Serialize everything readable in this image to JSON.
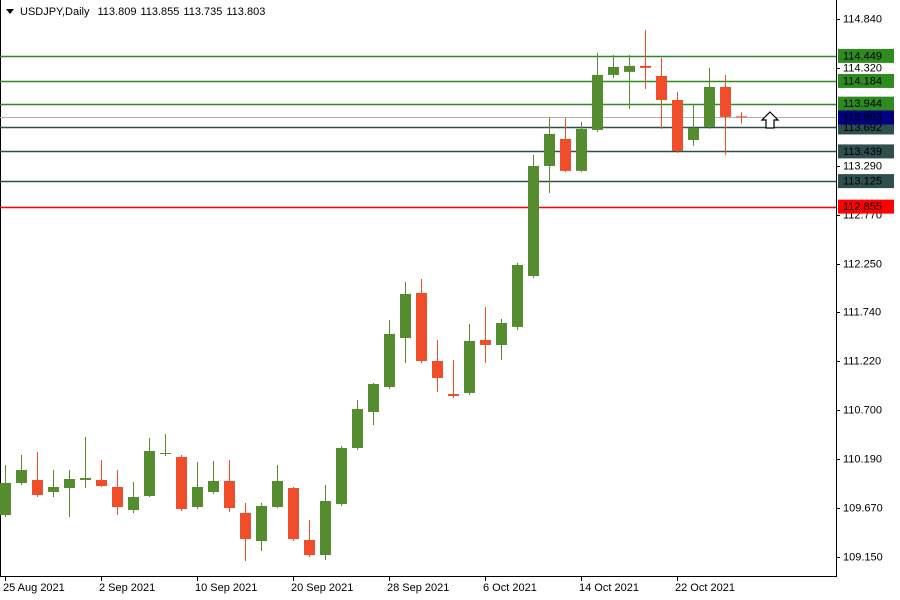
{
  "chart_data": {
    "type": "candlestick",
    "title": "USDJPY,Daily",
    "categories": [
      "25 Aug 2021",
      null,
      null,
      null,
      null,
      null,
      "2 Sep 2021",
      null,
      null,
      null,
      null,
      null,
      "10 Sep 2021",
      null,
      null,
      null,
      null,
      null,
      "20 Sep 2021",
      null,
      null,
      null,
      null,
      null,
      "28 Sep 2021",
      null,
      null,
      null,
      null,
      null,
      "6 Oct 2021",
      null,
      null,
      null,
      null,
      null,
      "14 Oct 2021",
      null,
      null,
      null,
      null,
      null,
      "22 Oct 2021",
      null,
      null,
      null,
      null
    ],
    "open": [
      109.594,
      109.933,
      109.965,
      109.838,
      109.88,
      109.965,
      109.965,
      109.891,
      109.647,
      109.795,
      110.24,
      110.208,
      109.679,
      109.838,
      109.954,
      109.616,
      109.319,
      109.679,
      109.88,
      109.33,
      109.171,
      109.711,
      110.303,
      110.684,
      110.948,
      111.466,
      111.942,
      111.223,
      110.874,
      110.885,
      111.445,
      111.392,
      111.583,
      112.122,
      113.285,
      113.571,
      113.233,
      113.666,
      114.248,
      114.28,
      114.343,
      114.237,
      113.983,
      113.56,
      113.698,
      114.121,
      113.809
    ],
    "high": [
      110.123,
      110.229,
      110.261,
      110.07,
      110.07,
      110.419,
      110.176,
      110.07,
      109.943,
      110.409,
      110.451,
      110.229,
      110.155,
      110.166,
      110.176,
      109.721,
      109.721,
      110.123,
      109.891,
      109.542,
      109.912,
      110.324,
      110.811,
      110.99,
      111.657,
      112.059,
      112.09,
      111.445,
      111.234,
      111.614,
      111.794,
      111.667,
      112.26,
      113.402,
      113.793,
      113.793,
      113.751,
      114.481,
      114.459,
      114.459,
      114.724,
      114.428,
      114.068,
      113.941,
      114.322,
      114.248,
      113.855
    ],
    "low": [
      109.573,
      109.912,
      109.785,
      109.785,
      109.573,
      109.88,
      109.891,
      109.594,
      109.616,
      109.785,
      110.218,
      109.637,
      109.658,
      109.817,
      109.626,
      109.108,
      109.214,
      109.668,
      109.319,
      109.15,
      109.118,
      109.69,
      110.282,
      110.546,
      110.927,
      111.202,
      111.202,
      110.895,
      110.832,
      110.864,
      111.202,
      111.234,
      111.551,
      112.101,
      113.0,
      113.222,
      113.222,
      113.645,
      114.216,
      113.888,
      114.1,
      113.677,
      113.423,
      113.497,
      113.677,
      113.402,
      113.735
    ],
    "close": [
      109.933,
      110.07,
      109.806,
      109.891,
      109.975,
      109.986,
      109.901,
      109.679,
      109.785,
      110.271,
      110.25,
      109.658,
      109.891,
      109.954,
      109.668,
      109.341,
      109.69,
      109.954,
      109.341,
      109.171,
      109.742,
      110.303,
      110.715,
      110.98,
      111.509,
      111.932,
      111.223,
      111.043,
      110.853,
      111.435,
      111.392,
      111.625,
      112.238,
      113.285,
      113.624,
      113.233,
      113.677,
      114.248,
      114.332,
      114.343,
      114.322,
      113.983,
      113.444,
      113.687,
      114.121,
      113.804,
      113.803
    ],
    "up_color": "#548c2f",
    "down_color": "#f04e2a",
    "current_price_color": "#000080",
    "ylim": [
      108.96,
      115.04
    ],
    "yticks": [
      {
        "value": 109.15,
        "label": "109.150"
      },
      {
        "value": 109.67,
        "label": "109.670"
      },
      {
        "value": 110.19,
        "label": "110.190"
      },
      {
        "value": 110.7,
        "label": "110.700"
      },
      {
        "value": 111.22,
        "label": "111.220"
      },
      {
        "value": 111.74,
        "label": "111.740"
      },
      {
        "value": 112.25,
        "label": "112.250"
      },
      {
        "value": 112.77,
        "label": "112.770"
      },
      {
        "value": 113.29,
        "label": "113.290"
      },
      {
        "value": 114.32,
        "label": "114.320"
      },
      {
        "value": 114.84,
        "label": "114.840"
      }
    ],
    "levels": [
      {
        "value": 114.449,
        "color": "#2e8b1f"
      },
      {
        "value": 114.184,
        "color": "#2e8b1f"
      },
      {
        "value": 113.944,
        "color": "#2e8b1f"
      },
      {
        "value": 113.692,
        "color": "#2f4f4f"
      },
      {
        "value": 113.439,
        "color": "#2f4f4f"
      },
      {
        "value": 113.125,
        "color": "#2f4f4f"
      },
      {
        "value": 112.855,
        "color": "#ff0000"
      }
    ],
    "grid": false
  }
}
